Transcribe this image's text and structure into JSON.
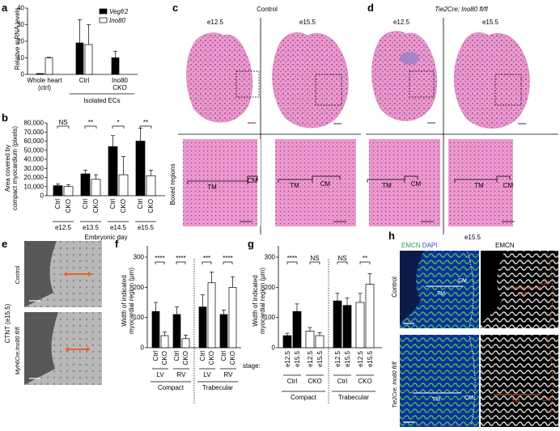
{
  "panel_labels": {
    "a": "a",
    "b": "b",
    "c": "c",
    "d": "d",
    "e": "e",
    "f": "f",
    "g": "g",
    "h": "h"
  },
  "panel_a": {
    "ylabel": "Relative mRNA levels",
    "legend": [
      {
        "name": "Vegfr2",
        "color": "#000000"
      },
      {
        "name": "Ino80",
        "color": "#ffffff"
      }
    ],
    "group_label": "Isolated ECs",
    "xlabels": [
      "Whole heart (ctrl)",
      "Ctrl",
      "Ino80 CKO"
    ]
  },
  "panel_b": {
    "ylabel": "Area covered by compact myocardium (pixels)",
    "xlabel": "Embryonic day",
    "days": [
      "e12.5",
      "e13.5",
      "e14.5",
      "e15.5"
    ],
    "bar_labels": [
      "Ctrl",
      "CKO"
    ],
    "sig": [
      "NS",
      "**",
      "*",
      "**"
    ]
  },
  "panel_c": {
    "title": "Control",
    "stages": [
      "e12.5",
      "e15.5"
    ]
  },
  "panel_d": {
    "title": "Tie2Cre; Ino80 fl/fl",
    "stages": [
      "e12.5",
      "e15.5"
    ]
  },
  "boxed_regions": "Boxed regions",
  "histo_labels": {
    "tm": "TM",
    "cm": "CM"
  },
  "panel_e": {
    "side": "CTNT (e15.5)",
    "top": "Control",
    "bottom": "Myh6Cre;Ino80 fl/fl"
  },
  "panel_f": {
    "ylabel": "Width of indicated myocardial region (µm)",
    "bar_labels": [
      "Ctrl",
      "CKO"
    ],
    "regions": [
      "LV",
      "RV",
      "LV",
      "RV"
    ],
    "groups": [
      "Compact",
      "Trabecular"
    ],
    "sig": [
      "****",
      "****",
      "***",
      "****"
    ]
  },
  "panel_g": {
    "ylabel": "Width of indicated myocardial region (µm)",
    "stage_label": "stage:",
    "stages": [
      "e12.5",
      "e15.5"
    ],
    "geno": [
      "Ctrl",
      "CKO",
      "Ctrl",
      "CKO"
    ],
    "groups": [
      "Compact",
      "Trabecular"
    ],
    "sig": [
      "****",
      "NS",
      "NS",
      "**"
    ]
  },
  "panel_h": {
    "title": "e15.5",
    "stain_left": "EMCN",
    "stain_dapi": "DAPI",
    "stain_right": "EMCN",
    "row_top": "Control",
    "row_bottom": "Tie2Cre; Ino80 fl/fl"
  },
  "chart_data": [
    {
      "type": "bar",
      "panel": "a",
      "ylabel": "Relative mRNA levels",
      "categories": [
        "Whole heart (ctrl)",
        "Ctrl",
        "Ino80 CKO"
      ],
      "series": [
        {
          "name": "Vegfr2",
          "values": [
            0.5,
            19,
            10
          ],
          "errors": [
            0,
            14,
            4
          ]
        },
        {
          "name": "Ino80",
          "values": [
            10,
            18,
            null
          ],
          "errors": [
            0.3,
            12,
            null
          ]
        }
      ],
      "ylim": [
        0,
        40
      ],
      "yticks": [
        0,
        10,
        20,
        30,
        40
      ]
    },
    {
      "type": "bar",
      "panel": "b",
      "ylabel": "Area covered by compact myocardium (pixels)",
      "xlabel": "Embryonic day",
      "categories": [
        "e12.5",
        "e13.5",
        "e14.5",
        "e15.5"
      ],
      "series": [
        {
          "name": "Ctrl",
          "values": [
            11000,
            24000,
            54000,
            60000
          ],
          "errors": [
            2000,
            4000,
            12000,
            14000
          ]
        },
        {
          "name": "CKO",
          "values": [
            10000,
            18000,
            23000,
            22000
          ],
          "errors": [
            2000,
            5000,
            20000,
            6000
          ]
        }
      ],
      "ylim": [
        0,
        80000
      ],
      "yticks": [
        0,
        10000,
        20000,
        30000,
        40000,
        50000,
        60000,
        70000,
        80000
      ],
      "ytick_labels": [
        "0",
        "10,000",
        "20,000",
        "30,000",
        "40,000",
        "50,000",
        "60,000",
        "70,000",
        "80,000"
      ]
    },
    {
      "type": "bar",
      "panel": "f",
      "ylabel": "Width of indicated myocardial region (µm)",
      "categories": [
        "Compact LV",
        "Compact RV",
        "Trabecular LV",
        "Trabecular RV"
      ],
      "series": [
        {
          "name": "Ctrl",
          "values": [
            120,
            110,
            135,
            110
          ],
          "errors": [
            30,
            25,
            40,
            15
          ]
        },
        {
          "name": "CKO",
          "values": [
            40,
            30,
            215,
            200
          ],
          "errors": [
            12,
            12,
            35,
            35
          ]
        }
      ],
      "ylim": [
        0,
        300
      ],
      "yticks": [
        0,
        100,
        200,
        300
      ]
    },
    {
      "type": "bar",
      "panel": "g",
      "ylabel": "Width of indicated myocardial region (µm)",
      "categories": [
        "Compact Ctrl",
        "Compact CKO",
        "Trabecular Ctrl",
        "Trabecular CKO"
      ],
      "series": [
        {
          "name": "e12.5",
          "values": [
            40,
            55,
            155,
            150
          ],
          "errors": [
            8,
            12,
            25,
            30
          ]
        },
        {
          "name": "e15.5",
          "values": [
            120,
            40,
            140,
            210
          ],
          "errors": [
            25,
            10,
            25,
            35
          ]
        }
      ],
      "ylim": [
        0,
        300
      ],
      "yticks": [
        0,
        100,
        200,
        300
      ]
    }
  ]
}
